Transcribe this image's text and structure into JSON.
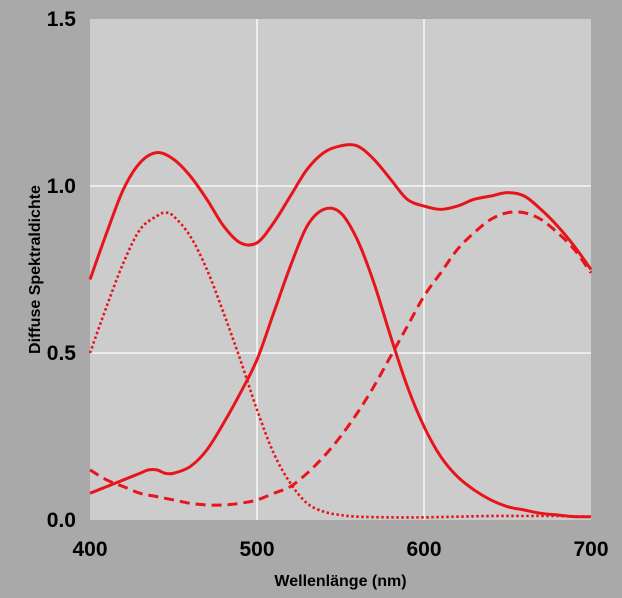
{
  "chart_data": {
    "type": "line",
    "title": "",
    "xlabel": "Wellenlänge (nm)",
    "ylabel": "Diffuse Spektraldichte",
    "xlim": [
      400,
      700
    ],
    "ylim": [
      0,
      1.5
    ],
    "x_ticks": [
      "400",
      "500",
      "600",
      "700"
    ],
    "y_ticks": [
      "0.0",
      "0.5",
      "1.0",
      "1.5"
    ],
    "grid": true,
    "legend": "none",
    "colors": {
      "line": "#e8141c",
      "plot_bg": "#cccccc",
      "outer_bg": "#a9a9a9",
      "grid": "#ffffff"
    },
    "series": [
      {
        "style": "solid",
        "x": [
          400,
          410,
          420,
          430,
          440,
          450,
          460,
          470,
          480,
          490,
          500,
          510,
          520,
          530,
          540,
          550,
          560,
          570,
          580,
          590,
          600,
          610,
          620,
          630,
          640,
          650,
          660,
          670,
          680,
          690,
          700
        ],
        "y": [
          0.72,
          0.86,
          0.99,
          1.07,
          1.1,
          1.08,
          1.03,
          0.96,
          0.88,
          0.83,
          0.83,
          0.89,
          0.97,
          1.05,
          1.1,
          1.12,
          1.12,
          1.08,
          1.02,
          0.96,
          0.94,
          0.93,
          0.94,
          0.96,
          0.97,
          0.98,
          0.97,
          0.93,
          0.88,
          0.82,
          0.75
        ]
      },
      {
        "style": "solid",
        "x": [
          400,
          410,
          420,
          430,
          435,
          440,
          445,
          450,
          460,
          470,
          480,
          490,
          500,
          510,
          520,
          530,
          540,
          550,
          560,
          570,
          580,
          590,
          600,
          610,
          620,
          630,
          640,
          650,
          660,
          670,
          680,
          690,
          700
        ],
        "y": [
          0.08,
          0.1,
          0.12,
          0.14,
          0.15,
          0.15,
          0.14,
          0.14,
          0.16,
          0.21,
          0.29,
          0.38,
          0.48,
          0.62,
          0.76,
          0.88,
          0.93,
          0.92,
          0.84,
          0.71,
          0.55,
          0.4,
          0.28,
          0.19,
          0.13,
          0.09,
          0.06,
          0.04,
          0.03,
          0.02,
          0.015,
          0.01,
          0.01
        ]
      },
      {
        "style": "dotted",
        "x": [
          400,
          410,
          420,
          430,
          440,
          445,
          450,
          460,
          470,
          480,
          490,
          500,
          510,
          520,
          530,
          540,
          550,
          560,
          580,
          600,
          620,
          640,
          660,
          680,
          700
        ],
        "y": [
          0.5,
          0.64,
          0.77,
          0.87,
          0.91,
          0.92,
          0.91,
          0.85,
          0.75,
          0.62,
          0.48,
          0.33,
          0.2,
          0.11,
          0.05,
          0.025,
          0.015,
          0.01,
          0.008,
          0.008,
          0.01,
          0.012,
          0.012,
          0.012,
          0.01
        ]
      },
      {
        "style": "dashed",
        "x": [
          400,
          410,
          420,
          430,
          440,
          450,
          460,
          470,
          480,
          490,
          500,
          510,
          520,
          530,
          540,
          550,
          560,
          570,
          580,
          590,
          600,
          610,
          620,
          630,
          640,
          650,
          660,
          670,
          680,
          690,
          700
        ],
        "y": [
          0.15,
          0.12,
          0.1,
          0.08,
          0.07,
          0.06,
          0.05,
          0.045,
          0.045,
          0.05,
          0.06,
          0.08,
          0.1,
          0.14,
          0.19,
          0.25,
          0.32,
          0.4,
          0.49,
          0.58,
          0.67,
          0.74,
          0.81,
          0.86,
          0.9,
          0.92,
          0.92,
          0.9,
          0.86,
          0.81,
          0.74
        ]
      }
    ]
  }
}
